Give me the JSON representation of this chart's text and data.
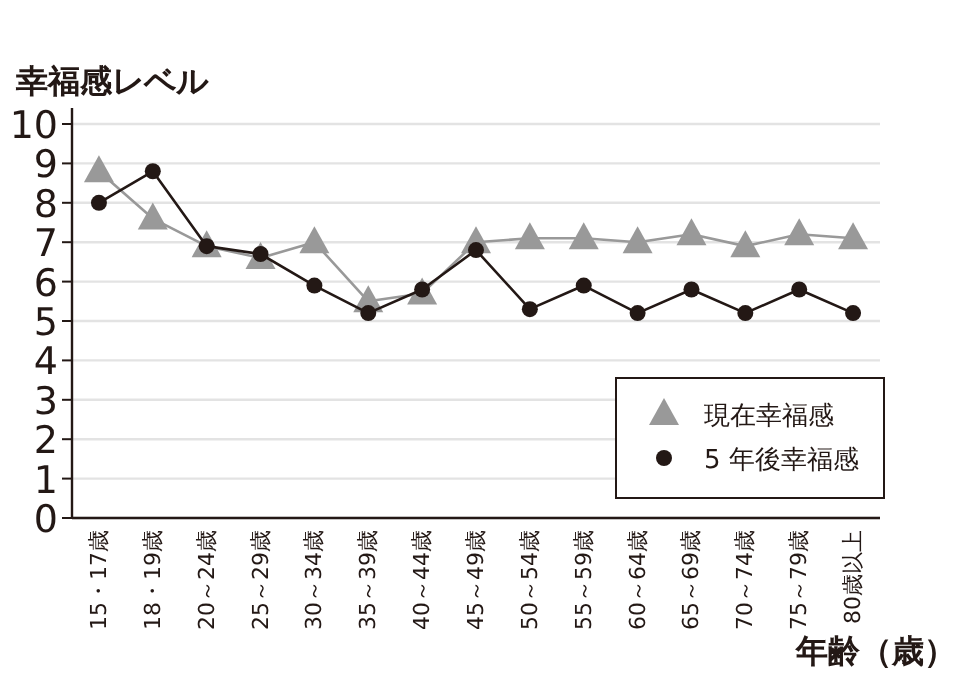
{
  "chart_data": {
    "type": "line",
    "ylabel": "幸福感レベル",
    "xlabel": "年齢（歳）",
    "categories": [
      "15・17歳",
      "18・19歳",
      "20～24歳",
      "25～29歳",
      "30～34歳",
      "35～39歳",
      "40～44歳",
      "45～49歳",
      "50～54歳",
      "55～59歳",
      "60～64歳",
      "65～69歳",
      "70～74歳",
      "75～79歳",
      "80歳以上"
    ],
    "series": [
      {
        "name": "現在幸福感",
        "color": "#999999",
        "marker": "triangle",
        "values": [
          8.8,
          7.6,
          6.9,
          6.6,
          7.0,
          5.5,
          5.7,
          7.0,
          7.1,
          7.1,
          7.0,
          7.2,
          6.9,
          7.2,
          7.1
        ]
      },
      {
        "name": "5 年後幸福感",
        "color": "#231815",
        "marker": "circle",
        "values": [
          8.0,
          8.8,
          6.9,
          6.7,
          5.9,
          5.2,
          5.8,
          6.8,
          5.3,
          5.9,
          5.2,
          5.8,
          5.2,
          5.8,
          5.2
        ]
      }
    ],
    "ylim": [
      0,
      10
    ],
    "yticks": [
      0,
      1,
      2,
      3,
      4,
      5,
      6,
      7,
      8,
      9,
      10
    ],
    "grid": "y",
    "legend": "bottom right",
    "line_style": "solid"
  }
}
